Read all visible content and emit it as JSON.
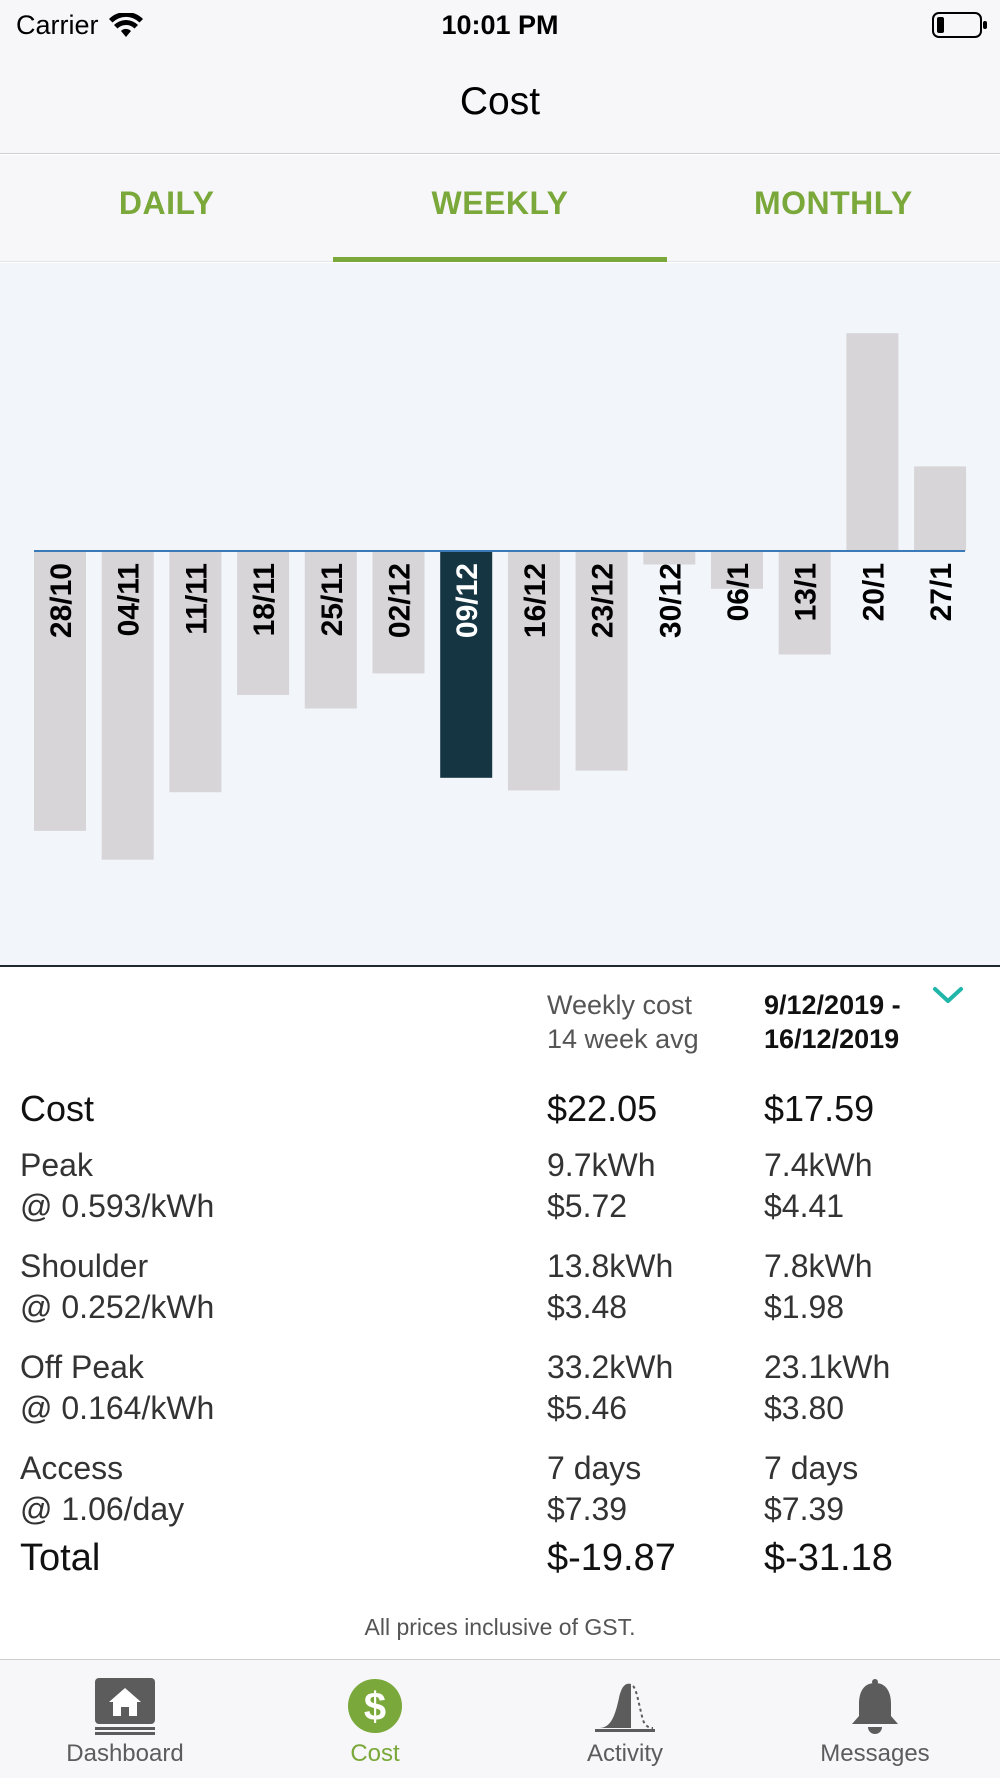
{
  "status": {
    "carrier": "Carrier",
    "time": "10:01 PM"
  },
  "nav": {
    "title": "Cost"
  },
  "tabs": [
    {
      "label": "DAILY",
      "active": false
    },
    {
      "label": "WEEKLY",
      "active": true
    },
    {
      "label": "MONTHLY",
      "active": false
    }
  ],
  "chart_data": {
    "type": "bar",
    "categories": [
      "28/10",
      "04/11",
      "11/11",
      "18/11",
      "25/11",
      "02/12",
      "09/12",
      "16/12",
      "23/12",
      "30/12",
      "06/1",
      "13/1",
      "20/1",
      "27/1"
    ],
    "values": [
      -31.1,
      -34.3,
      -26.8,
      -16.0,
      -17.5,
      -13.6,
      -25.2,
      -26.6,
      -24.4,
      -1.5,
      -4.2,
      -11.5,
      24.2,
      9.4
    ],
    "selected": "09/12",
    "colors": {
      "bar": "#d7d5d7",
      "selected": "#153543",
      "baseline": "#3a7ab8",
      "background": "#f2f5fa"
    }
  },
  "summary": {
    "col1_label": [
      "Weekly cost",
      "14 week avg"
    ],
    "col2_range": [
      "9/12/2019 -",
      "16/12/2019"
    ],
    "cost": {
      "label": "Cost",
      "avg": "$22.05",
      "week": "$17.59"
    },
    "rows": [
      {
        "name": "Peak",
        "rate": "@ 0.593/kWh",
        "avg_qty": "9.7kWh",
        "avg_cost": "$5.72",
        "week_qty": "7.4kWh",
        "week_cost": "$4.41"
      },
      {
        "name": "Shoulder",
        "rate": "@ 0.252/kWh",
        "avg_qty": "13.8kWh",
        "avg_cost": "$3.48",
        "week_qty": "7.8kWh",
        "week_cost": "$1.98"
      },
      {
        "name": "Off Peak",
        "rate": "@ 0.164/kWh",
        "avg_qty": "33.2kWh",
        "avg_cost": "$5.46",
        "week_qty": "23.1kWh",
        "week_cost": "$3.80"
      },
      {
        "name": "Access",
        "rate": "@ 1.06/day",
        "avg_qty": "7 days",
        "avg_cost": "$7.39",
        "week_qty": "7 days",
        "week_cost": "$7.39"
      }
    ],
    "total": {
      "label": "Total",
      "avg": "$-19.87",
      "week": "$-31.18"
    },
    "footnote": "All prices inclusive of GST."
  },
  "tab_bar": [
    {
      "label": "Dashboard",
      "icon": "home-icon",
      "active": false
    },
    {
      "label": "Cost",
      "icon": "dollar-icon",
      "active": true
    },
    {
      "label": "Activity",
      "icon": "activity-icon",
      "active": false
    },
    {
      "label": "Messages",
      "icon": "bell-icon",
      "active": false
    }
  ],
  "accent_color": "#7aa83a",
  "chevron_color": "#1fb5a8"
}
